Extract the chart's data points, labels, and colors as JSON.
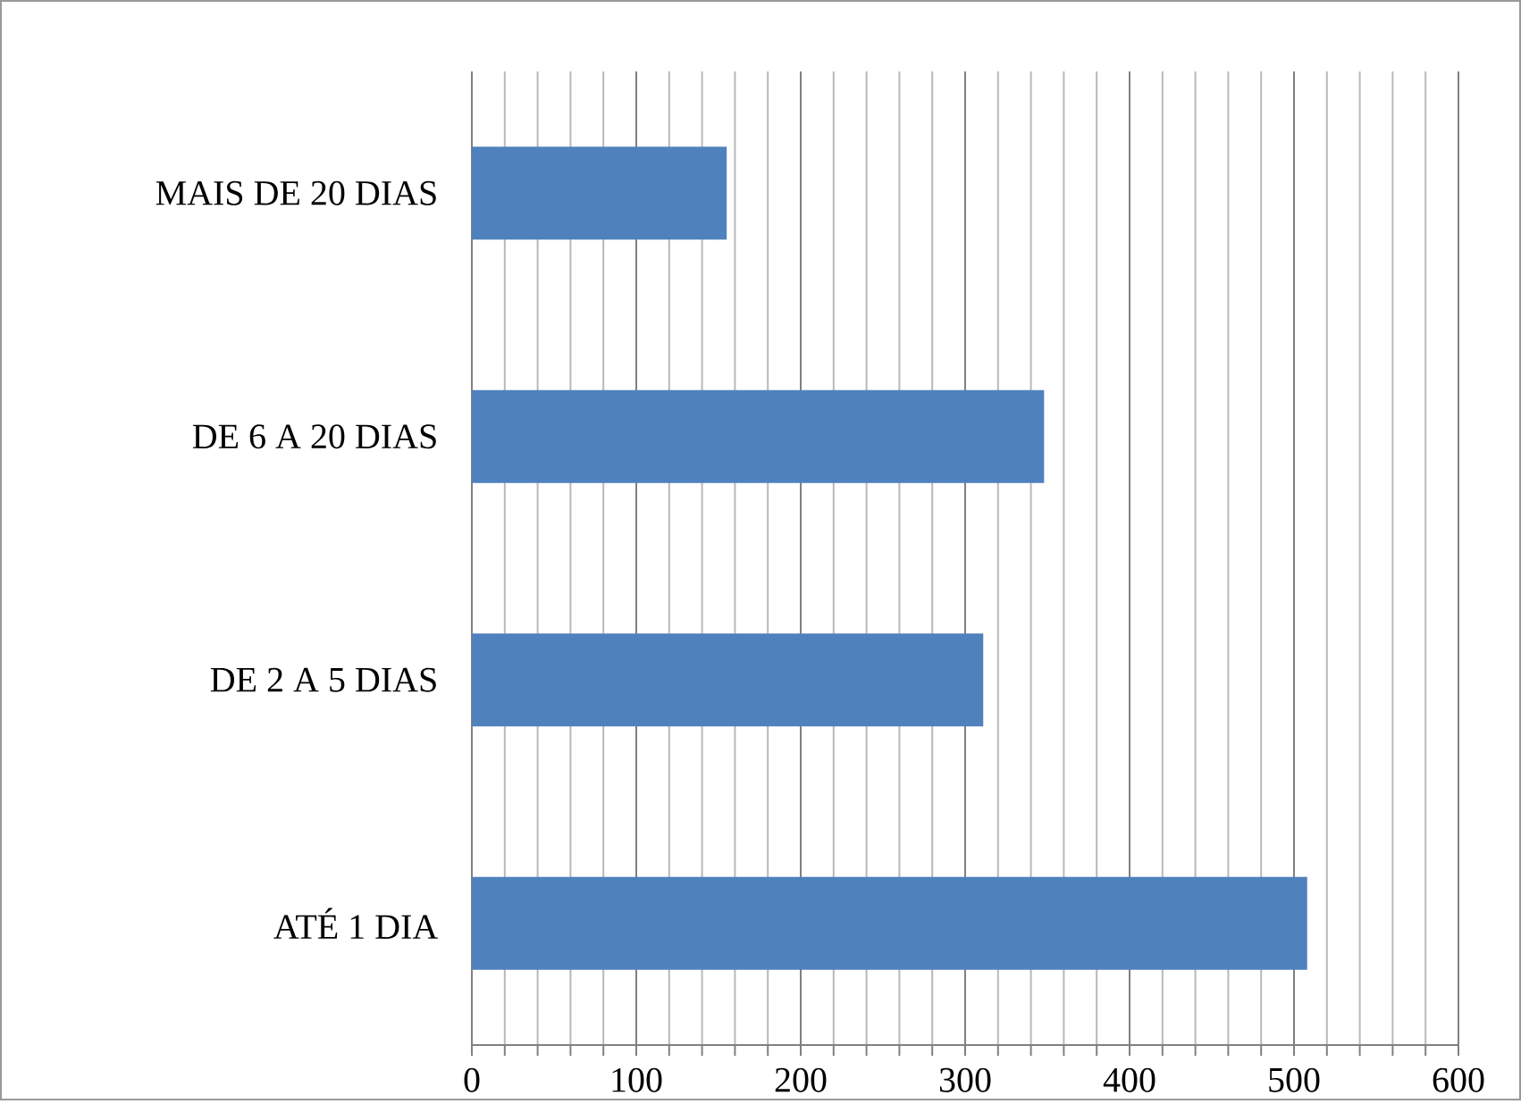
{
  "chart_data": {
    "type": "bar",
    "orientation": "horizontal",
    "categories": [
      "MAIS DE 20 DIAS",
      "DE 6 A 20 DIAS",
      "DE 2 A 5 DIAS",
      "ATÉ 1 DIA"
    ],
    "values": [
      155,
      348,
      311,
      508
    ],
    "color": "#4f81bd",
    "xlim": [
      0,
      600
    ],
    "xticks": [
      0,
      100,
      200,
      300,
      400,
      500,
      600
    ],
    "grid": "x"
  }
}
